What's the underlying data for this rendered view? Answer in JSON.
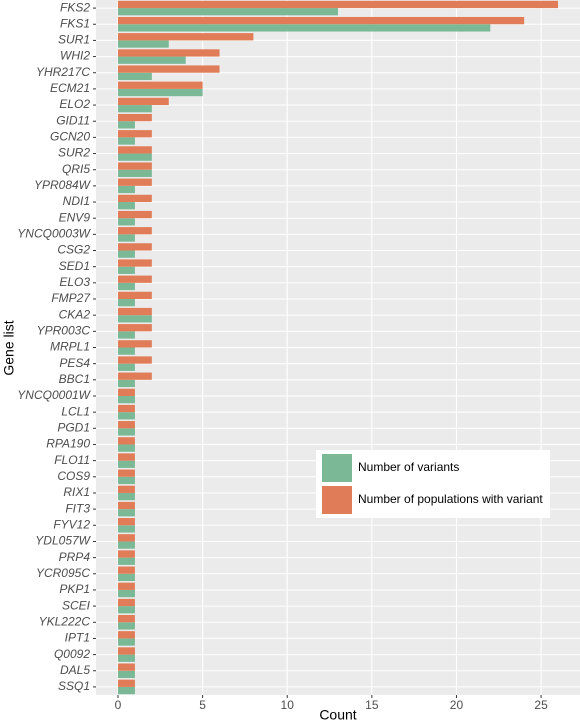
{
  "chart_data": {
    "type": "bar",
    "orientation": "horizontal",
    "x_label": "Count",
    "y_label": "Gene list",
    "categories": [
      "FKS2",
      "FKS1",
      "SUR1",
      "WHI2",
      "YHR217C",
      "ECM21",
      "ELO2",
      "GID11",
      "GCN20",
      "SUR2",
      "QRI5",
      "YPR084W",
      "NDI1",
      "ENV9",
      "YNCQ0003W",
      "CSG2",
      "SED1",
      "ELO3",
      "FMP27",
      "CKA2",
      "YPR003C",
      "MRPL1",
      "PES4",
      "BBC1",
      "YNCQ0001W",
      "LCL1",
      "PGD1",
      "RPA190",
      "FLO11",
      "COS9",
      "RIX1",
      "FIT3",
      "FYV12",
      "YDL057W",
      "PRP4",
      "YCR095C",
      "PKP1",
      "SCEI",
      "YKL222C",
      "IPT1",
      "Q0092",
      "DAL5",
      "SSQ1"
    ],
    "series": [
      {
        "name": "Number of variants",
        "color": "#7bb896",
        "values": [
          13,
          22,
          3,
          4,
          2,
          5,
          2,
          1,
          1,
          2,
          2,
          1,
          1,
          1,
          1,
          1,
          1,
          1,
          1,
          2,
          1,
          1,
          1,
          1,
          1,
          1,
          1,
          1,
          1,
          1,
          1,
          1,
          1,
          1,
          1,
          1,
          1,
          1,
          1,
          1,
          1,
          1,
          1
        ]
      },
      {
        "name": "Number of populations with variant",
        "color": "#e07d58",
        "values": [
          26,
          24,
          8,
          6,
          6,
          5,
          3,
          2,
          2,
          2,
          2,
          2,
          2,
          2,
          2,
          2,
          2,
          2,
          2,
          2,
          2,
          2,
          2,
          2,
          1,
          1,
          1,
          1,
          1,
          1,
          1,
          1,
          1,
          1,
          1,
          1,
          1,
          1,
          1,
          1,
          1,
          1,
          1
        ]
      }
    ],
    "xlim": [
      -1.3,
      27.3
    ],
    "xticks": [
      0,
      5,
      10,
      15,
      20,
      25
    ],
    "grid": true,
    "legend_position": "right"
  }
}
